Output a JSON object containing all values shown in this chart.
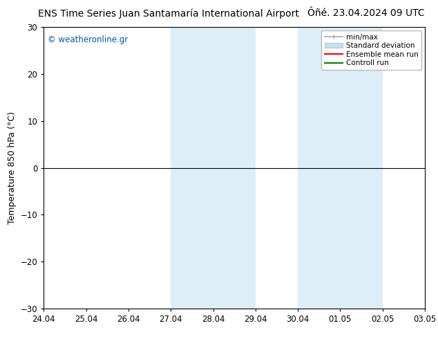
{
  "title_left": "ENS Time Series Juan Santamaría International Airport",
  "title_right": "Ôñé. 23.04.2024 09 UTC",
  "ylabel": "Temperature 850 hPa (°C)",
  "watermark": "© weatheronline.gr",
  "watermark_color": "#0055aa",
  "ylim": [
    -30,
    30
  ],
  "yticks": [
    -30,
    -20,
    -10,
    0,
    10,
    20,
    30
  ],
  "xtick_labels": [
    "24.04",
    "25.04",
    "26.04",
    "27.04",
    "28.04",
    "29.04",
    "30.04",
    "01.05",
    "02.05",
    "03.05"
  ],
  "shaded_regions": [
    {
      "xstart": 3,
      "xend": 5,
      "color": "#ddeef8"
    },
    {
      "xstart": 6,
      "xend": 8,
      "color": "#ddeef8"
    }
  ],
  "minmax_color": "#aaaaaa",
  "stddev_color": "#c8dff0",
  "ensemble_mean_color": "#ff0000",
  "control_run_color": "#008000",
  "zero_line_color": "#000000",
  "background_color": "#ffffff",
  "plot_bg_color": "#ffffff",
  "legend_labels": [
    "min/max",
    "Standard deviation",
    "Ensemble mean run",
    "Controll run"
  ],
  "title_fontsize": 10,
  "tick_fontsize": 8.5,
  "ylabel_fontsize": 9
}
